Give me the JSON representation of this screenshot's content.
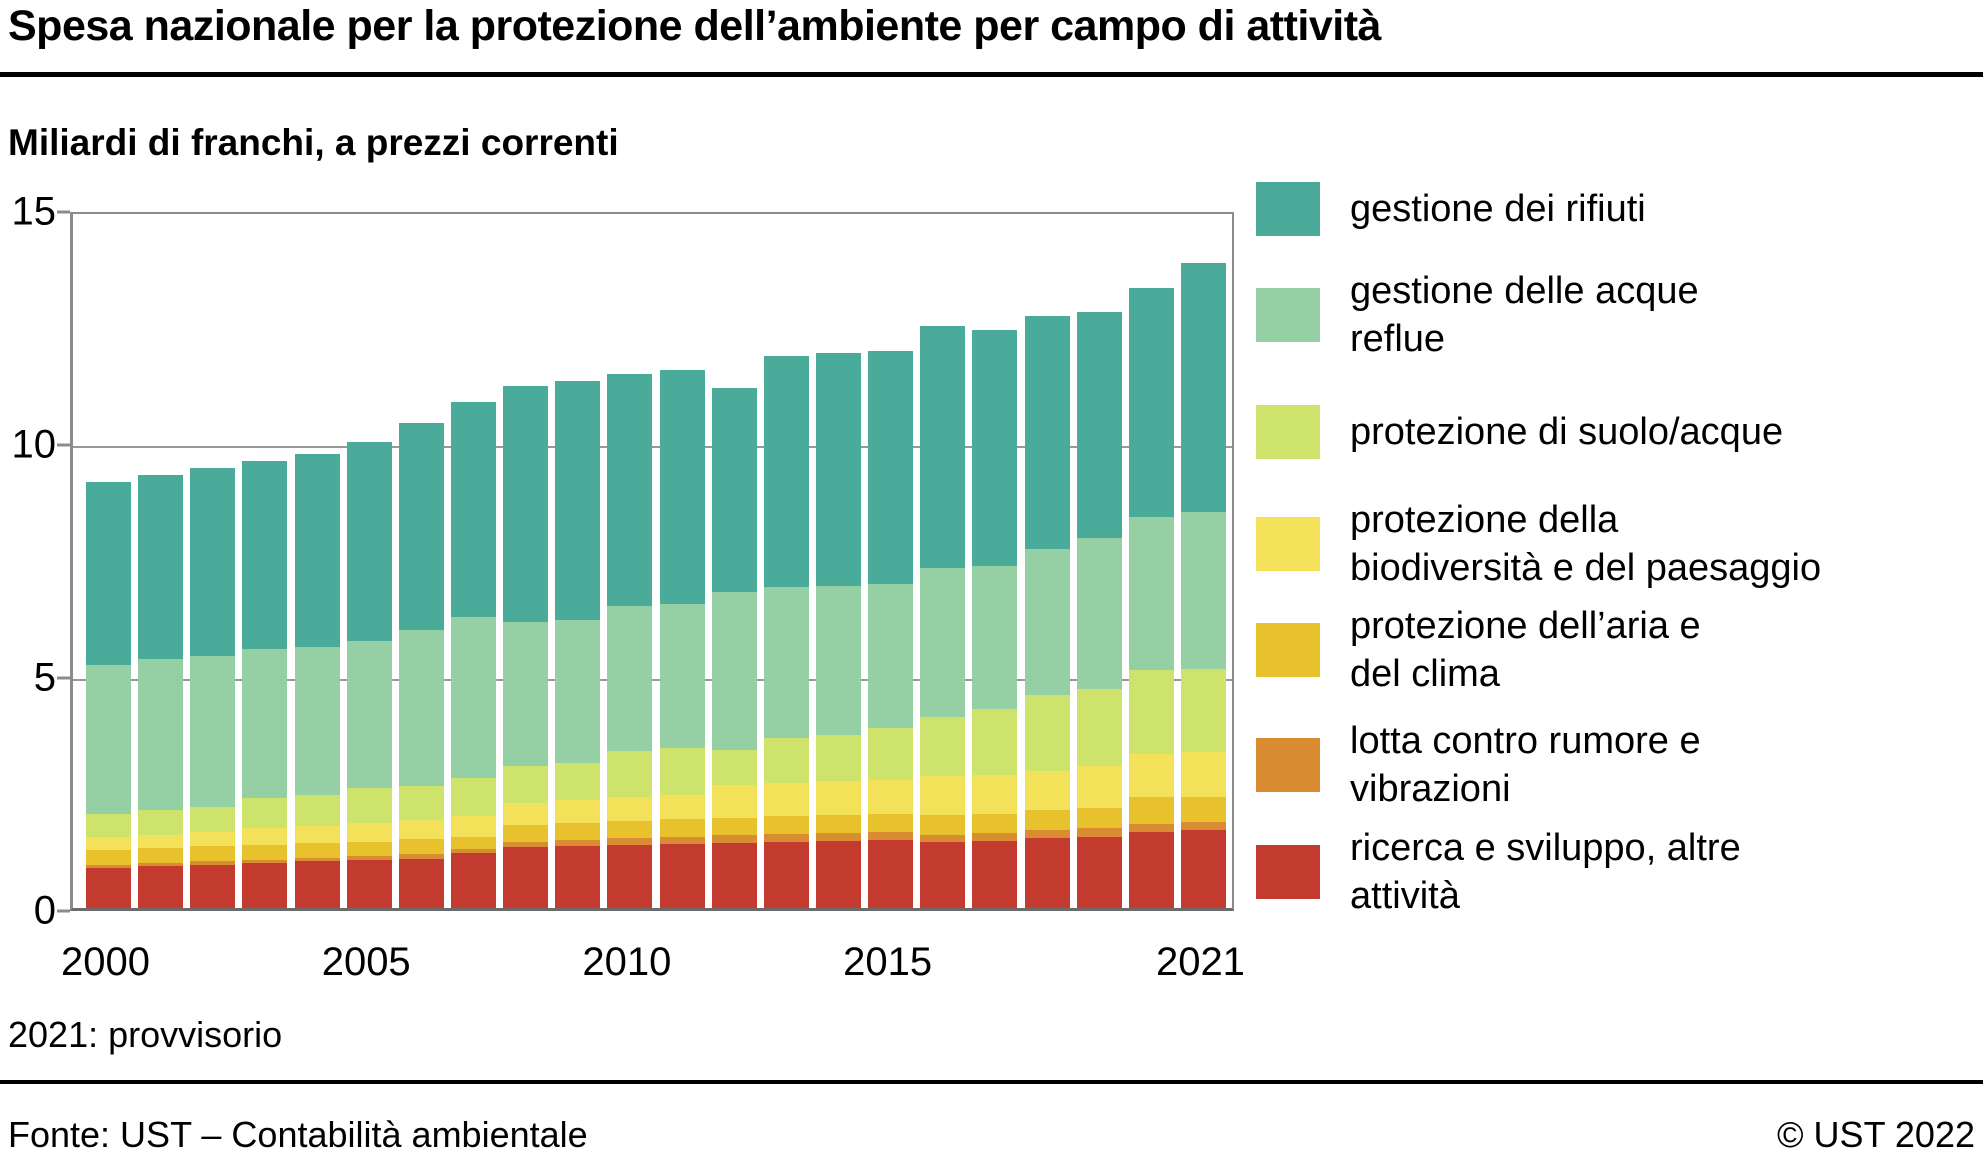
{
  "title": "Spesa nazionale per la protezione dell’ambiente per campo di attività",
  "subtitle": "Miliardi di franchi, a prezzi correnti",
  "footnote": "2021: provvisorio",
  "source": "Fonte: UST – Contabilità ambientale",
  "copyright": "© UST 2022",
  "colors": {
    "waste": "#4aab9a",
    "wastewater": "#95cfa4",
    "soil_water": "#cde36b",
    "biodiversity": "#f2e159",
    "air_climate": "#e7c22c",
    "noise": "#da8c33",
    "research": "#c33a2f",
    "grid": "#999999",
    "axis": "#8c8c8c"
  },
  "legend": {
    "items": [
      {
        "id": "waste",
        "color": "#4aab9a",
        "lines": [
          "gestione dei rifiuti"
        ]
      },
      {
        "id": "wastewater",
        "color": "#95cfa4",
        "lines": [
          "gestione delle acque",
          "reflue"
        ]
      },
      {
        "id": "soil_water",
        "color": "#cde36b",
        "lines": [
          "protezione di suolo/acque"
        ]
      },
      {
        "id": "biodiversity",
        "color": "#f2e159",
        "lines": [
          "protezione della",
          "biodiversità e del paesaggio"
        ]
      },
      {
        "id": "air_climate",
        "color": "#e7c22c",
        "lines": [
          "protezione dell’aria e",
          "del clima"
        ]
      },
      {
        "id": "noise",
        "color": "#da8c33",
        "lines": [
          "lotta contro rumore e",
          "vibrazioni"
        ]
      },
      {
        "id": "research",
        "color": "#c33a2f",
        "lines": [
          "ricerca e sviluppo, altre",
          "attività"
        ]
      }
    ]
  },
  "chart_data": {
    "type": "bar",
    "stacked": true,
    "title": "Spesa nazionale per la protezione dell’ambiente per campo di attività",
    "unit_label": "Miliardi di franchi, a prezzi correnti",
    "xlabel": "",
    "ylabel": "",
    "ylim": [
      0,
      15
    ],
    "yticks": [
      0,
      5,
      10,
      15
    ],
    "grid": "horizontal",
    "legend_position": "right",
    "x": [
      2000,
      2001,
      2002,
      2003,
      2004,
      2005,
      2006,
      2007,
      2008,
      2009,
      2010,
      2011,
      2012,
      2013,
      2014,
      2015,
      2016,
      2017,
      2018,
      2019,
      2020,
      2021
    ],
    "x_tick_labels": [
      "2000",
      "2005",
      "2010",
      "2015",
      "2021"
    ],
    "x_tick_years": [
      2000,
      2005,
      2010,
      2015,
      2021
    ],
    "series": [
      {
        "name": "ricerca e sviluppo, altre attività",
        "color_id": "research",
        "values": [
          0.85,
          0.89,
          0.93,
          0.97,
          1.0,
          1.03,
          1.06,
          1.17,
          1.31,
          1.34,
          1.36,
          1.38,
          1.4,
          1.42,
          1.44,
          1.45,
          1.42,
          1.44,
          1.5,
          1.52,
          1.63,
          1.67
        ]
      },
      {
        "name": "lotta contro rumore e vibrazioni",
        "color_id": "noise",
        "values": [
          0.08,
          0.08,
          0.07,
          0.07,
          0.08,
          0.09,
          0.1,
          0.09,
          0.1,
          0.12,
          0.15,
          0.14,
          0.16,
          0.17,
          0.17,
          0.18,
          0.14,
          0.16,
          0.18,
          0.2,
          0.18,
          0.17
        ]
      },
      {
        "name": "protezione dell’aria e del clima",
        "color_id": "air_climate",
        "values": [
          0.32,
          0.31,
          0.32,
          0.32,
          0.31,
          0.3,
          0.31,
          0.26,
          0.38,
          0.36,
          0.35,
          0.38,
          0.37,
          0.38,
          0.39,
          0.39,
          0.44,
          0.42,
          0.43,
          0.43,
          0.57,
          0.55
        ]
      },
      {
        "name": "protezione della biodiversità e del paesaggio",
        "color_id": "biodiversity",
        "values": [
          0.28,
          0.29,
          0.32,
          0.35,
          0.38,
          0.4,
          0.41,
          0.45,
          0.46,
          0.5,
          0.52,
          0.52,
          0.7,
          0.71,
          0.72,
          0.73,
          0.83,
          0.84,
          0.83,
          0.89,
          0.93,
          0.96
        ]
      },
      {
        "name": "protezione di suolo/acque",
        "color_id": "soil_water",
        "values": [
          0.48,
          0.54,
          0.53,
          0.66,
          0.66,
          0.75,
          0.73,
          0.82,
          0.79,
          0.79,
          0.98,
          1.01,
          0.75,
          0.96,
          1.0,
          1.11,
          1.27,
          1.42,
          1.63,
          1.67,
          1.79,
          1.78
        ]
      },
      {
        "name": "gestione delle acque reflue",
        "color_id": "wastewater",
        "values": [
          3.2,
          3.23,
          3.23,
          3.18,
          3.18,
          3.17,
          3.36,
          3.45,
          3.1,
          3.06,
          3.13,
          3.09,
          3.41,
          3.24,
          3.2,
          3.09,
          3.19,
          3.05,
          3.13,
          3.23,
          3.3,
          3.37
        ]
      },
      {
        "name": "gestione dei rifiuti",
        "color_id": "waste",
        "values": [
          3.94,
          3.96,
          4.05,
          4.05,
          4.14,
          4.26,
          4.43,
          4.61,
          5.06,
          5.13,
          4.96,
          5.03,
          4.36,
          4.97,
          4.98,
          5.0,
          5.21,
          5.07,
          5.0,
          4.86,
          4.9,
          5.35
        ]
      }
    ],
    "totals": [
      9.15,
      9.3,
      9.45,
      9.6,
      9.75,
      10.0,
      10.4,
      10.85,
      11.2,
      11.3,
      11.45,
      11.55,
      11.15,
      11.85,
      11.9,
      11.95,
      12.5,
      12.4,
      12.7,
      12.8,
      13.3,
      13.85
    ]
  }
}
